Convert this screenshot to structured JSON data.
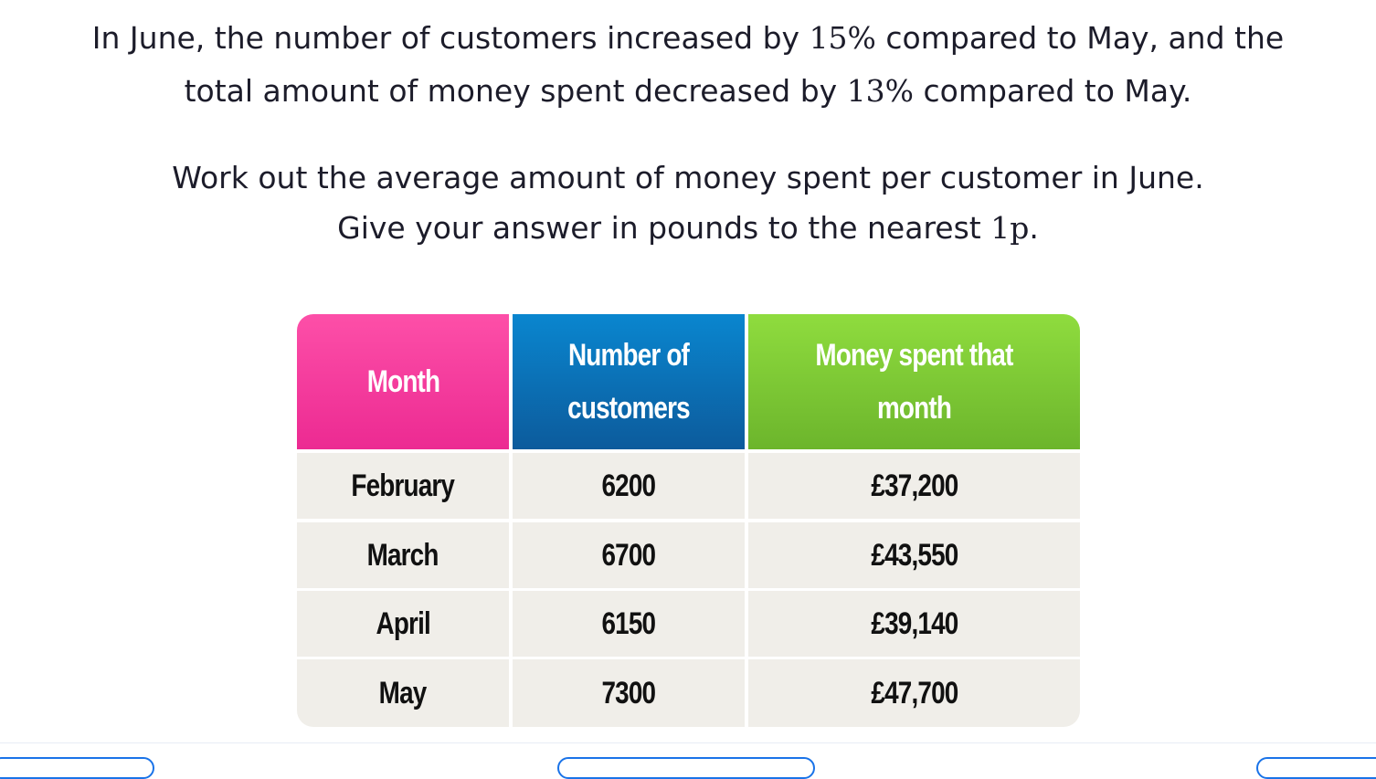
{
  "question": {
    "line1_a": "In June, the number of customers increased by ",
    "line1_pct": "15%",
    "line1_b": " compared to May, and the",
    "line2_a": "total amount of money spent decreased by ",
    "line2_pct": "13%",
    "line2_b": " compared to May.",
    "line3": "Work out the average amount of money spent per customer in June.",
    "line4_a": "Give your answer in pounds to the nearest ",
    "line4_unit": "1p",
    "line4_b": "."
  },
  "table": {
    "headers": [
      "Month",
      "Number of customers",
      "Money spent that month"
    ],
    "header_colors": [
      "#f33a9e",
      "#0a6fb8",
      "#7cc935"
    ],
    "rows": [
      [
        "February",
        "6200",
        "£37,200"
      ],
      [
        "March",
        "6700",
        "£43,550"
      ],
      [
        "April",
        "6150",
        "£39,140"
      ],
      [
        "May",
        "7300",
        "£47,700"
      ]
    ]
  }
}
